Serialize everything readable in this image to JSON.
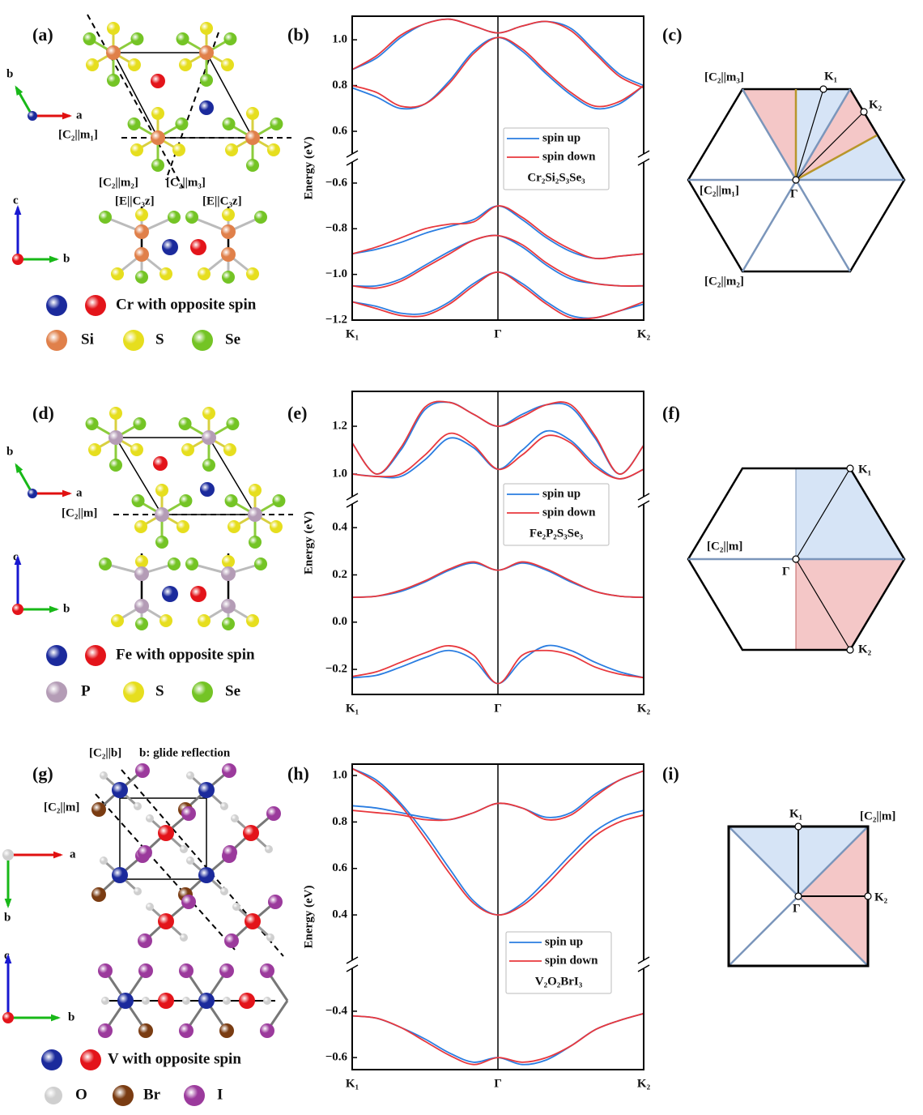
{
  "panel_labels": [
    "(a)",
    "(b)",
    "(c)",
    "(d)",
    "(e)",
    "(f)",
    "(g)",
    "(h)",
    "(i)"
  ],
  "chart_data": [
    {
      "type": "band",
      "y_label": "Energy (eV)",
      "formula": "Cr₂Si₂S₃Se₃",
      "x": [
        0,
        1,
        2,
        3,
        4,
        5,
        6,
        7,
        8,
        9,
        10,
        11,
        12
      ],
      "xlim": [
        0,
        12
      ],
      "xticks": [
        {
          "value": 0,
          "label": "K₁"
        },
        {
          "value": 6,
          "label": "Γ"
        },
        {
          "value": 12,
          "label": "K₂"
        }
      ],
      "upper": {
        "ylim": [
          0.501,
          1.103
        ],
        "yticks": [
          0.6,
          0.8,
          {
            "value": 1,
            "label": "1.0"
          }
        ]
      },
      "lower": {
        "ylim": [
          -1.2,
          -0.508
        ],
        "yticks": [
          {
            "value": -1.2,
            "label": "−1.2"
          },
          {
            "value": -1.0,
            "label": "−1.0"
          },
          {
            "value": -0.8,
            "label": "−0.8"
          },
          {
            "value": -0.6,
            "label": "−0.6"
          }
        ]
      },
      "series": [
        {
          "name": "spin up",
          "color": "#2a7de1",
          "bands": [
            {
              "axis": "upper",
              "values": [
                0.87,
                0.92,
                1.01,
                1.07,
                1.09,
                1.06,
                1.03,
                1.06,
                1.08,
                1.05,
                0.95,
                0.85,
                0.8
              ]
            },
            {
              "axis": "upper",
              "values": [
                0.79,
                0.75,
                0.7,
                0.72,
                0.82,
                0.95,
                1.01,
                0.95,
                0.85,
                0.76,
                0.7,
                0.72,
                0.8
              ]
            },
            {
              "axis": "lower",
              "values": [
                -0.91,
                -0.89,
                -0.86,
                -0.82,
                -0.79,
                -0.76,
                -0.7,
                -0.76,
                -0.84,
                -0.9,
                -0.93,
                -0.92,
                -0.91
              ]
            },
            {
              "axis": "lower",
              "values": [
                -1.05,
                -1.05,
                -1.02,
                -0.96,
                -0.9,
                -0.85,
                -0.83,
                -0.88,
                -0.96,
                -1.02,
                -1.04,
                -1.05,
                -1.05
              ]
            },
            {
              "axis": "lower",
              "values": [
                -1.12,
                -1.14,
                -1.17,
                -1.17,
                -1.12,
                -1.04,
                -0.99,
                -1.04,
                -1.12,
                -1.18,
                -1.19,
                -1.16,
                -1.13
              ]
            }
          ]
        },
        {
          "name": "spin down",
          "color": "#e8383d",
          "bands": [
            {
              "axis": "upper",
              "values": [
                0.87,
                0.93,
                1.02,
                1.07,
                1.09,
                1.06,
                1.03,
                1.06,
                1.08,
                1.04,
                0.94,
                0.84,
                0.79
              ]
            },
            {
              "axis": "upper",
              "values": [
                0.8,
                0.77,
                0.71,
                0.72,
                0.81,
                0.94,
                1.01,
                0.96,
                0.86,
                0.77,
                0.71,
                0.73,
                0.8
              ]
            },
            {
              "axis": "lower",
              "values": [
                -0.91,
                -0.88,
                -0.84,
                -0.8,
                -0.78,
                -0.77,
                -0.7,
                -0.75,
                -0.83,
                -0.89,
                -0.93,
                -0.92,
                -0.91
              ]
            },
            {
              "axis": "lower",
              "values": [
                -1.05,
                -1.06,
                -1.03,
                -0.97,
                -0.91,
                -0.85,
                -0.83,
                -0.87,
                -0.95,
                -1.01,
                -1.04,
                -1.05,
                -1.05
              ]
            },
            {
              "axis": "lower",
              "values": [
                -1.12,
                -1.15,
                -1.18,
                -1.18,
                -1.13,
                -1.05,
                -0.99,
                -1.05,
                -1.13,
                -1.19,
                -1.19,
                -1.16,
                -1.12
              ]
            }
          ]
        }
      ]
    },
    {
      "type": "band",
      "y_label": "Energy (eV)",
      "formula": "Fe₂P₂S₃Se₃",
      "x": [
        0,
        1,
        2,
        3,
        4,
        5,
        6,
        7,
        8,
        9,
        10,
        11,
        12
      ],
      "xlim": [
        0,
        12
      ],
      "xticks": [
        {
          "value": 0,
          "label": "K₁"
        },
        {
          "value": 6,
          "label": "Γ"
        },
        {
          "value": 12,
          "label": "K₂"
        }
      ],
      "upper": {
        "ylim": [
          0.905,
          1.346
        ],
        "yticks": [
          {
            "value": 1,
            "label": "1.0"
          },
          1.2
        ]
      },
      "lower": {
        "ylim": [
          -0.306,
          0.5
        ],
        "yticks": [
          {
            "value": -0.2,
            "label": "−0.2"
          },
          {
            "value": 0,
            "label": "0.0"
          },
          0.2,
          0.4
        ]
      },
      "series": [
        {
          "name": "spin up",
          "color": "#2a7de1",
          "bands": [
            {
              "axis": "upper",
              "values": [
                1.13,
                1.0,
                1.1,
                1.27,
                1.3,
                1.25,
                1.2,
                1.25,
                1.29,
                1.28,
                1.15,
                1.0,
                1.12
              ]
            },
            {
              "axis": "upper",
              "values": [
                1.0,
                0.99,
                0.99,
                1.06,
                1.15,
                1.11,
                1.02,
                1.1,
                1.18,
                1.14,
                1.04,
                0.98,
                1.02
              ]
            },
            {
              "axis": "lower",
              "values": [
                0.105,
                0.11,
                0.13,
                0.17,
                0.22,
                0.25,
                0.22,
                0.25,
                0.22,
                0.17,
                0.13,
                0.11,
                0.105
              ]
            },
            {
              "axis": "lower",
              "values": [
                -0.235,
                -0.225,
                -0.19,
                -0.15,
                -0.12,
                -0.16,
                -0.26,
                -0.16,
                -0.1,
                -0.12,
                -0.17,
                -0.21,
                -0.235
              ]
            }
          ]
        },
        {
          "name": "spin down",
          "color": "#e8383d",
          "bands": [
            {
              "axis": "upper",
              "values": [
                1.13,
                1.0,
                1.11,
                1.28,
                1.3,
                1.25,
                1.2,
                1.24,
                1.29,
                1.29,
                1.16,
                1.0,
                1.12
              ]
            },
            {
              "axis": "upper",
              "values": [
                1.0,
                0.99,
                1.0,
                1.08,
                1.17,
                1.12,
                1.02,
                1.08,
                1.16,
                1.13,
                1.03,
                0.98,
                1.02
              ]
            },
            {
              "axis": "lower",
              "values": [
                0.105,
                0.11,
                0.135,
                0.175,
                0.225,
                0.255,
                0.22,
                0.255,
                0.225,
                0.175,
                0.13,
                0.11,
                0.105
              ]
            },
            {
              "axis": "lower",
              "values": [
                -0.23,
                -0.21,
                -0.17,
                -0.13,
                -0.1,
                -0.14,
                -0.26,
                -0.14,
                -0.12,
                -0.14,
                -0.19,
                -0.22,
                -0.235
              ]
            }
          ]
        }
      ]
    },
    {
      "type": "band",
      "y_label": "Energy (eV)",
      "formula": "V₂O₂BrI₃",
      "x": [
        0,
        1,
        2,
        3,
        4,
        5,
        6,
        7,
        8,
        9,
        10,
        11,
        12
      ],
      "xlim": [
        0,
        12
      ],
      "xticks": [
        {
          "value": 0,
          "label": "K₁"
        },
        {
          "value": 6,
          "label": "Γ"
        },
        {
          "value": 12,
          "label": "K₂"
        }
      ],
      "upper": {
        "ylim": [
          0.205,
          1.049
        ],
        "yticks": [
          0.4,
          0.6,
          0.8,
          {
            "value": 1,
            "label": "1.0"
          }
        ]
      },
      "lower": {
        "ylim": [
          -0.652,
          -0.215
        ],
        "yticks": [
          {
            "value": -0.6,
            "label": "−0.6"
          },
          {
            "value": -0.4,
            "label": "−0.4"
          }
        ]
      },
      "series": [
        {
          "name": "spin up",
          "color": "#2a7de1",
          "bands": [
            {
              "axis": "upper",
              "values": [
                1.03,
                0.98,
                0.88,
                0.75,
                0.6,
                0.46,
                0.4,
                0.45,
                0.55,
                0.66,
                0.76,
                0.82,
                0.85
              ]
            },
            {
              "axis": "upper",
              "values": [
                0.87,
                0.86,
                0.84,
                0.82,
                0.81,
                0.84,
                0.88,
                0.86,
                0.82,
                0.84,
                0.92,
                0.98,
                1.02
              ]
            },
            {
              "axis": "lower",
              "values": [
                -0.42,
                -0.43,
                -0.47,
                -0.52,
                -0.58,
                -0.62,
                -0.6,
                -0.63,
                -0.61,
                -0.55,
                -0.48,
                -0.44,
                -0.41
              ]
            }
          ]
        },
        {
          "name": "spin down",
          "color": "#e8383d",
          "bands": [
            {
              "axis": "upper",
              "values": [
                1.03,
                0.97,
                0.87,
                0.73,
                0.58,
                0.45,
                0.4,
                0.44,
                0.53,
                0.64,
                0.74,
                0.8,
                0.83
              ]
            },
            {
              "axis": "upper",
              "values": [
                0.85,
                0.84,
                0.83,
                0.81,
                0.81,
                0.84,
                0.88,
                0.86,
                0.81,
                0.83,
                0.91,
                0.98,
                1.02
              ]
            },
            {
              "axis": "lower",
              "values": [
                -0.42,
                -0.43,
                -0.47,
                -0.53,
                -0.59,
                -0.63,
                -0.6,
                -0.62,
                -0.6,
                -0.55,
                -0.48,
                -0.44,
                -0.41
              ]
            }
          ]
        }
      ]
    }
  ],
  "structures": [
    {
      "symmetry_labels": [
        "[C₂||m₁]",
        "[C₂||m₂]",
        "[C₂||m₃]",
        "[E||C₃z]",
        "[E||C₃z]"
      ],
      "axes": [
        "b",
        "a",
        "c",
        "c",
        "b",
        "a"
      ],
      "legend": [
        "Cr with opposite spin",
        "Si",
        "S",
        "Se"
      ]
    },
    {
      "symmetry_labels": [
        "[C₂||m]"
      ],
      "axes": [
        "b",
        "a",
        "c",
        "c",
        "b",
        "a"
      ],
      "legend": [
        "Fe with opposite spin",
        "P",
        "S",
        "Se"
      ]
    },
    {
      "symmetry_labels": [
        "[C₂||b]",
        "b: glide reflection",
        "[C₂||m]"
      ],
      "axes": [
        "a",
        "b",
        "c",
        "b",
        "a"
      ],
      "legend": [
        "V with opposite spin",
        "O",
        "Br",
        "I"
      ]
    }
  ],
  "brillouin": [
    {
      "labels": [
        "[C₂||m₃]",
        "K₁",
        "K₂",
        "[C₂||m₁]",
        "Γ",
        "[C₂||m₂]"
      ]
    },
    {
      "labels": [
        "K₁",
        "[C₂||m]",
        "Γ",
        "K₂"
      ]
    },
    {
      "labels": [
        "K₁",
        "[C₂||m]",
        "Γ",
        "K₂"
      ]
    }
  ]
}
